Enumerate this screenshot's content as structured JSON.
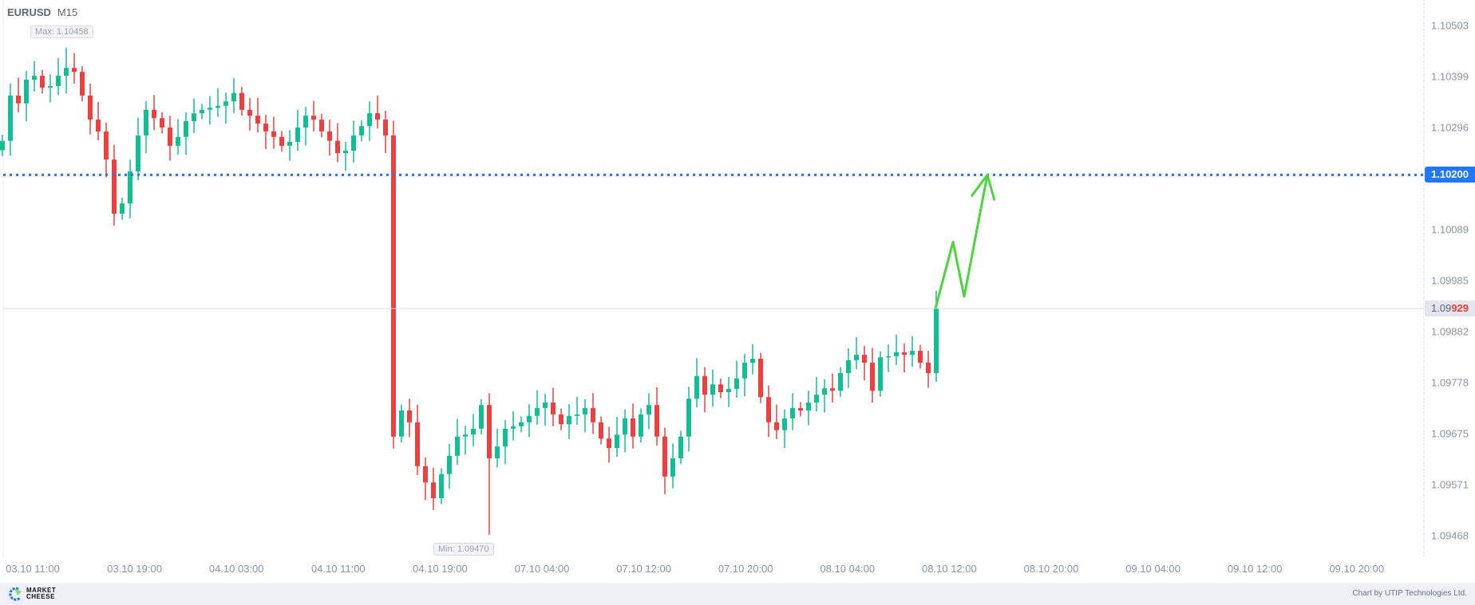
{
  "header": {
    "symbol": "EURUSD",
    "timeframe": "M15"
  },
  "colors": {
    "up": "#12bf94",
    "down": "#ec4040",
    "level_line": "#1f78ff",
    "arrow": "#4cd63c",
    "current_line": "#d8d9e6"
  },
  "chart_data": {
    "type": "candlestick",
    "symbol": "EURUSD",
    "timeframe": "M15",
    "ylim": [
      1.094,
      1.1055
    ],
    "y_ticks": [
      "1.10503",
      "1.10399",
      "1.10296",
      "1.10089",
      "1.09985",
      "1.09882",
      "1.09778",
      "1.09675",
      "1.09571",
      "1.09468"
    ],
    "x_ticks": [
      "03.10 11:00",
      "03.10 19:00",
      "04.10 03:00",
      "04.10 11:00",
      "04.10 19:00",
      "07.10 04:00",
      "07.10 12:00",
      "07.10 20:00",
      "08.10 04:00",
      "08.10 12:00",
      "08.10 20:00",
      "09.10 04:00",
      "09.10 12:00",
      "09.10 20:00"
    ],
    "first_open": 1.1025,
    "closes": [
      1.10269,
      1.10361,
      1.10345,
      1.10393,
      1.10401,
      1.10377,
      1.1038,
      1.10401,
      1.10417,
      1.10409,
      1.10361,
      1.10312,
      1.10288,
      1.10231,
      1.10121,
      1.10142,
      1.10207,
      1.1028,
      1.10332,
      1.10315,
      1.10296,
      1.10259,
      1.10277,
      1.10309,
      1.10325,
      1.10332,
      1.10336,
      1.1034,
      1.10349,
      1.10366,
      1.10332,
      1.1032,
      1.10304,
      1.10288,
      1.10277,
      1.10259,
      1.10267,
      1.10296,
      1.1032,
      1.10312,
      1.10288,
      1.10269,
      1.10244,
      1.10249,
      1.1028,
      1.10299,
      1.10325,
      1.10312,
      1.1028,
      1.09669,
      1.09722,
      1.09698,
      1.09609,
      1.09576,
      1.09544,
      1.09593,
      1.0963,
      1.09669,
      1.09673,
      1.09685,
      1.09733,
      1.09625,
      1.09649,
      1.09685,
      1.0969,
      1.09698,
      1.09711,
      1.09727,
      1.09738,
      1.09714,
      1.09694,
      1.09711,
      1.09714,
      1.09727,
      1.09698,
      1.09665,
      1.09646,
      1.09673,
      1.09706,
      1.09669,
      1.09714,
      1.09733,
      1.09669,
      1.09588,
      1.09625,
      1.09669,
      1.09746,
      1.09792,
      1.09754,
      1.09775,
      1.09759,
      1.09766,
      1.09787,
      1.09819,
      1.09827,
      1.09749,
      1.09698,
      1.09682,
      1.09706,
      1.09727,
      1.09722,
      1.09738,
      1.09754,
      1.09767,
      1.09762,
      1.09798,
      1.09824,
      1.09835,
      1.09819,
      1.09762,
      1.0983,
      1.09832,
      1.0984,
      1.09835,
      1.09843,
      1.09819,
      1.09798,
      1.09929
    ],
    "max": {
      "label": "Max: 1.10458",
      "value": 1.10458,
      "candle_index": 8
    },
    "min": {
      "label": "Min: 1.09470",
      "value": 1.0947,
      "candle_index": 61
    },
    "level": {
      "value": 1.102,
      "label": "1.10200",
      "style": "dotted"
    },
    "current_price": {
      "value": 1.09929,
      "label_prefix": "1.09",
      "label_highlight": "929"
    },
    "forecast_arrow": [
      1.09929,
      1.10064,
      1.09953,
      1.102
    ]
  },
  "footer": {
    "logo_line1": "MARKET",
    "logo_line2": "CHEESE",
    "credit": "Chart by UTIP Technologies Ltd."
  }
}
